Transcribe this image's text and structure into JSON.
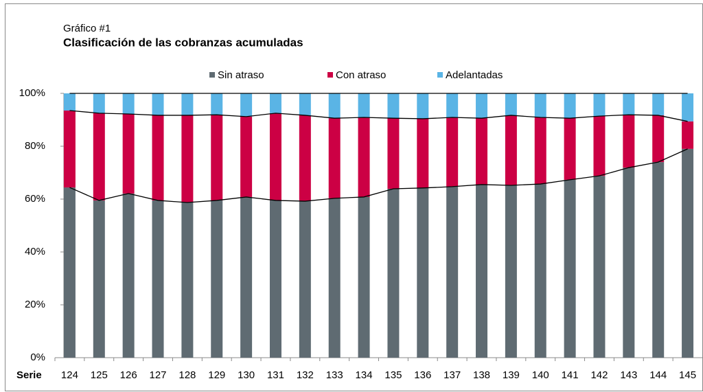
{
  "chart_data": {
    "type": "stacked-bar",
    "supertitle": "Gráfico #1",
    "title": "Clasificación de las cobranzas acumuladas",
    "xlabel": "Serie",
    "categories": [
      "124",
      "125",
      "126",
      "127",
      "128",
      "129",
      "130",
      "131",
      "132",
      "133",
      "134",
      "135",
      "136",
      "137",
      "138",
      "139",
      "140",
      "141",
      "142",
      "143",
      "144",
      "145"
    ],
    "series": [
      {
        "name": "Sin atraso",
        "color": "#5f6b72",
        "values": [
          64.4,
          59.5,
          62.1,
          59.5,
          58.7,
          59.5,
          60.8,
          59.5,
          59.2,
          60.3,
          60.8,
          63.9,
          64.2,
          64.7,
          65.5,
          65.2,
          65.7,
          67.3,
          68.8,
          71.9,
          74.0,
          79.0
        ]
      },
      {
        "name": "Con atraso",
        "color": "#cc0044",
        "values": [
          29.1,
          33.0,
          30.1,
          32.2,
          33.0,
          32.4,
          30.4,
          33.0,
          32.5,
          30.3,
          30.1,
          26.7,
          26.2,
          26.2,
          25.1,
          26.5,
          25.2,
          23.3,
          22.6,
          20.0,
          17.7,
          10.4
        ]
      },
      {
        "name": "Adelantadas",
        "color": "#5ab4e5",
        "values": [
          6.5,
          7.5,
          7.8,
          8.3,
          8.3,
          8.1,
          8.8,
          7.5,
          8.3,
          9.4,
          9.1,
          9.4,
          9.6,
          9.1,
          9.4,
          8.3,
          9.1,
          9.4,
          8.6,
          8.1,
          8.3,
          10.6
        ]
      }
    ],
    "ylim": [
      0,
      100
    ],
    "yticks": [
      {
        "value": 0,
        "label": "0%"
      },
      {
        "value": 20,
        "label": "20%"
      },
      {
        "value": 40,
        "label": "40%"
      },
      {
        "value": 60,
        "label": "60%"
      },
      {
        "value": 80,
        "label": "80%"
      },
      {
        "value": 100,
        "label": "100%"
      }
    ],
    "legend": "top"
  }
}
